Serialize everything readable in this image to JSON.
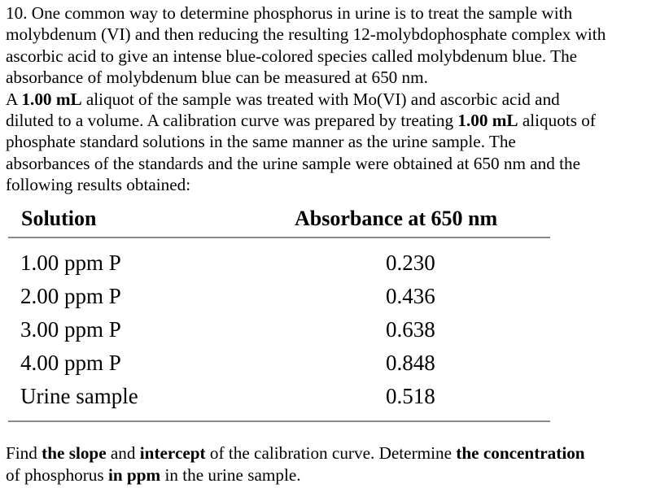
{
  "problem": {
    "line1": "10. One common way to determine phosphorus in urine is to treat the sample with",
    "line2": "molybdenum (VI) and then reducing the resulting 12-molybdophosphate complex with",
    "line3": "ascorbic acid to give an intense blue-colored species called molybdenum blue. The",
    "line4": "absorbance of molybdenum blue can be measured at 650 nm.",
    "line5_a": "A ",
    "line5_b": "1.00 mL",
    "line5_c": " aliquot of the sample was treated with Mo(VI) and ascorbic acid and",
    "line6_a": "diluted to a volume. A calibration curve was prepared by treating ",
    "line6_b": "1.00 mL",
    "line6_c": " aliquots of",
    "line7": "phosphate standard solutions in the same manner as the urine sample. The",
    "line8": "absorbances of the standards and the urine sample were obtained at 650 nm and the",
    "line9": "following results obtained:"
  },
  "table": {
    "header_solution": "Solution",
    "header_absorbance": "Absorbance at 650 nm",
    "rows": [
      {
        "solution": "1.00 ppm P",
        "absorbance": "0.230"
      },
      {
        "solution": "2.00 ppm P",
        "absorbance": "0.436"
      },
      {
        "solution": "3.00 ppm P",
        "absorbance": "0.638"
      },
      {
        "solution": "4.00 ppm P",
        "absorbance": "0.848"
      },
      {
        "solution": "Urine sample",
        "absorbance": "0.518"
      }
    ]
  },
  "question": {
    "q1": "Find ",
    "q2": "the slope",
    "q3": " and ",
    "q4": "intercept",
    "q5": " of the calibration curve. Determine ",
    "q6": "the concentration",
    "q7": "of phosphorus ",
    "q8": "in ppm",
    "q9": " in the urine sample."
  }
}
